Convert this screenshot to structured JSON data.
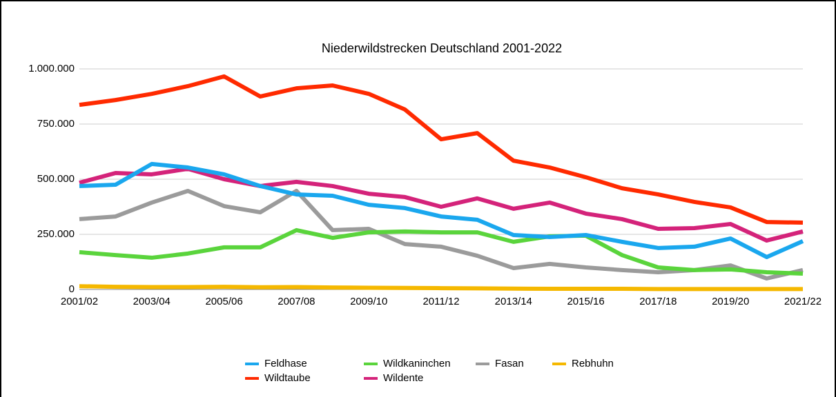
{
  "chart_data": {
    "type": "line",
    "title": "Niederwildstrecken Deutschland 2001-2022",
    "categories": [
      "2001/02",
      null,
      "2003/04",
      null,
      "2005/06",
      null,
      "2007/08",
      null,
      "2009/10",
      null,
      "2011/12",
      null,
      "2013/14",
      null,
      "2015/16",
      null,
      "2017/18",
      null,
      "2019/20",
      null,
      "2021/22"
    ],
    "ylim": [
      0,
      1000000
    ],
    "yticks": [
      0,
      {
        "value": 250000,
        "label": "250.000"
      },
      {
        "value": 500000,
        "label": "500.000"
      },
      {
        "value": 750000,
        "label": "750.000"
      },
      {
        "value": 1000000,
        "label": "1.000.000"
      }
    ],
    "grid": true,
    "legend": "bottom",
    "series": [
      {
        "name": "Feldhase",
        "color": "#1aa7ee",
        "values": [
          469000,
          475000,
          569000,
          553000,
          522000,
          469000,
          431000,
          425000,
          384000,
          369000,
          331000,
          316000,
          247000,
          238000,
          247000,
          216000,
          188000,
          194000,
          231000,
          147000,
          219000
        ]
      },
      {
        "name": "Wildtaube",
        "color": "#ff2a00",
        "values": [
          837000,
          859000,
          887000,
          922000,
          966000,
          875000,
          912000,
          925000,
          887000,
          816000,
          681000,
          709000,
          584000,
          553000,
          509000,
          459000,
          431000,
          397000,
          372000,
          306000,
          303000
        ]
      },
      {
        "name": "Wildkaninchen",
        "color": "#5ad43c",
        "values": [
          169000,
          156000,
          144000,
          163000,
          191000,
          191000,
          269000,
          234000,
          259000,
          263000,
          259000,
          259000,
          216000,
          241000,
          244000,
          156000,
          100000,
          88000,
          91000,
          78000,
          72000
        ]
      },
      {
        "name": "Wildente",
        "color": "#d4237a",
        "values": [
          484000,
          528000,
          522000,
          547000,
          500000,
          469000,
          488000,
          469000,
          434000,
          419000,
          375000,
          413000,
          366000,
          394000,
          344000,
          319000,
          275000,
          278000,
          297000,
          222000,
          263000
        ]
      },
      {
        "name": "Fasan",
        "color": "#9b9b9b",
        "values": [
          319000,
          331000,
          394000,
          447000,
          378000,
          350000,
          447000,
          269000,
          275000,
          206000,
          194000,
          153000,
          97000,
          116000,
          100000,
          88000,
          78000,
          88000,
          109000,
          50000,
          88000
        ]
      },
      {
        "name": "Rebhuhn",
        "color": "#f5b800",
        "values": [
          15000,
          12000,
          11000,
          11000,
          12000,
          10000,
          11000,
          9000,
          8000,
          7000,
          6000,
          5000,
          4000,
          3000,
          3000,
          3000,
          2000,
          2000,
          2000,
          2000,
          2000
        ]
      }
    ]
  }
}
